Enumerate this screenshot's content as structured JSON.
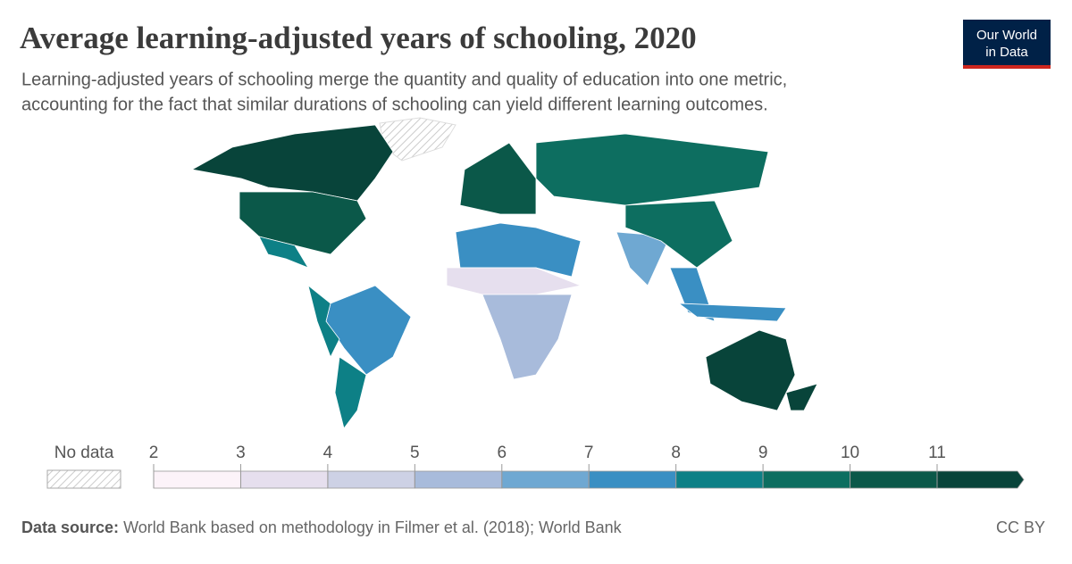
{
  "header": {
    "title": "Average learning-adjusted years of schooling, 2020",
    "subtitle_lines": [
      "Learning-adjusted years of schooling merge the quantity and quality of education into one metric,",
      "accounting for the fact that similar durations of schooling can yield different learning outcomes."
    ],
    "logo_lines": [
      "Our World",
      "in Data"
    ]
  },
  "map": {
    "region_values": [
      11.2,
      10.3,
      8.7,
      7.4,
      8.5,
      8.6,
      10.6,
      9.5,
      7.3,
      3.0,
      5.2,
      6.8,
      9.8,
      7.8,
      7.5,
      11.5,
      11.0
    ]
  },
  "legend": {
    "no_data_label": "No data",
    "ticks": [
      2,
      3,
      4,
      5,
      6,
      7,
      8,
      9,
      10,
      11
    ],
    "colors": [
      "#fcf3f9",
      "#e6dfee",
      "#cdd1e5",
      "#a8bbdb",
      "#6fa8d2",
      "#3a8fc3",
      "#0d8086",
      "#0d6e60",
      "#0b5849",
      "#08443a"
    ]
  },
  "footer": {
    "source_label": "Data source:",
    "source_text": "World Bank based on methodology in Filmer et al. (2018); World Bank",
    "license": "CC BY"
  }
}
